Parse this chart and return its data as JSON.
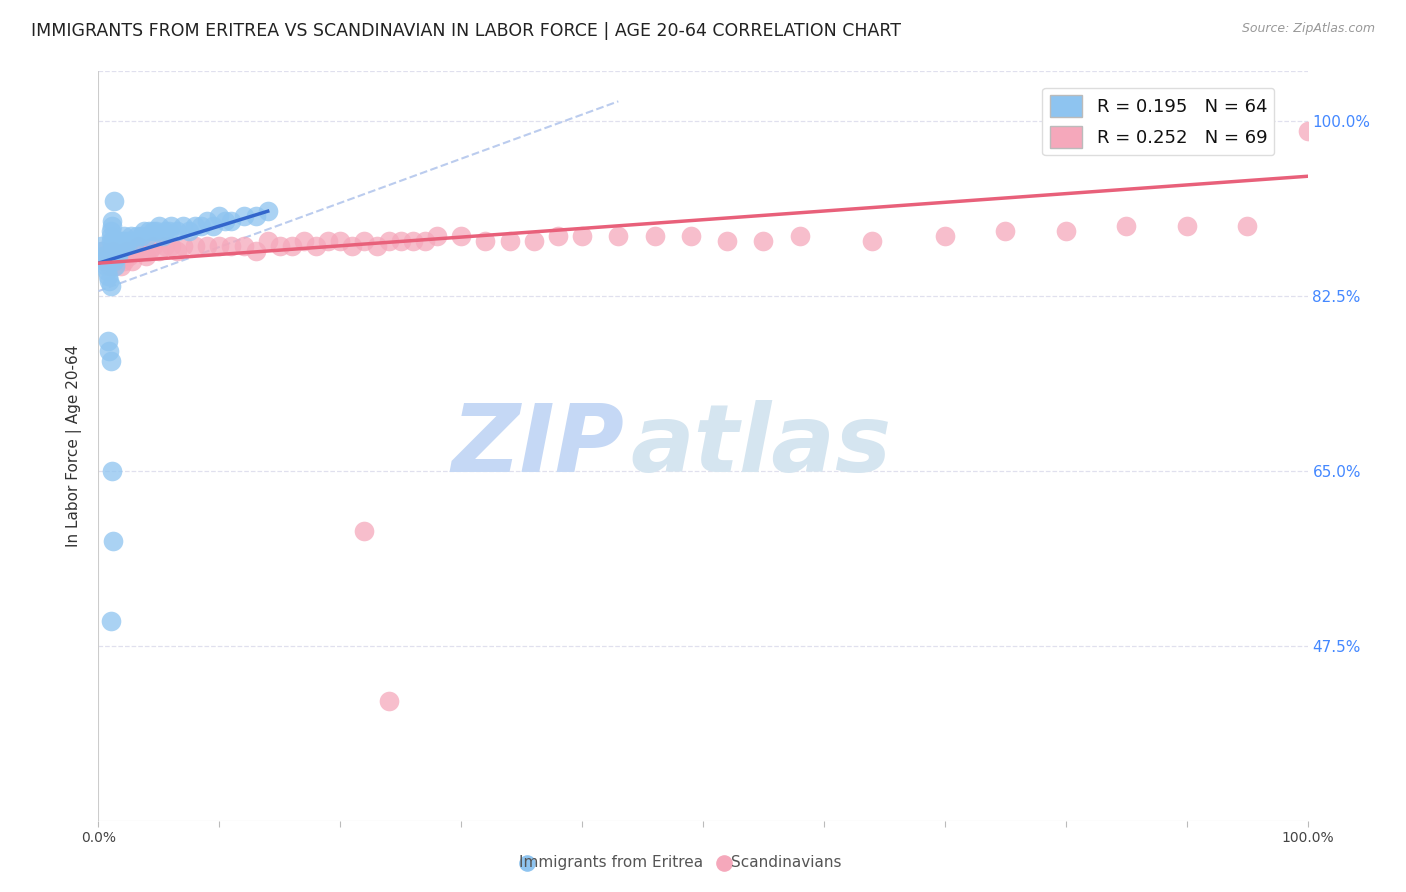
{
  "title": "IMMIGRANTS FROM ERITREA VS SCANDINAVIAN IN LABOR FORCE | AGE 20-64 CORRELATION CHART",
  "source": "Source: ZipAtlas.com",
  "ylabel": "In Labor Force | Age 20-64",
  "xlim": [
    0.0,
    1.0
  ],
  "ylim": [
    0.3,
    1.05
  ],
  "yticks": [
    0.475,
    0.65,
    0.825,
    1.0
  ],
  "ytick_labels": [
    "47.5%",
    "65.0%",
    "82.5%",
    "100.0%"
  ],
  "xticks": [
    0.0,
    0.1,
    0.2,
    0.3,
    0.4,
    0.5,
    0.6,
    0.7,
    0.8,
    0.9,
    1.0
  ],
  "blue_R": 0.195,
  "blue_N": 64,
  "pink_R": 0.252,
  "pink_N": 69,
  "blue_color": "#8EC4F0",
  "pink_color": "#F5A8BB",
  "blue_line_color": "#3366CC",
  "pink_line_color": "#E8607A",
  "dashed_line_color": "#BBCCEE",
  "background_color": "#FFFFFF",
  "zip_watermark_color": "#C5D8F5",
  "atlas_watermark_color": "#D5E5F0",
  "grid_color": "#E0E0EE",
  "title_fontsize": 12.5,
  "label_fontsize": 11,
  "tick_fontsize": 10,
  "legend_fontsize": 13,
  "blue_x": [
    0.002,
    0.003,
    0.004,
    0.005,
    0.006,
    0.007,
    0.008,
    0.009,
    0.01,
    0.01,
    0.01,
    0.01,
    0.011,
    0.011,
    0.012,
    0.012,
    0.013,
    0.013,
    0.014,
    0.015,
    0.016,
    0.017,
    0.018,
    0.019,
    0.02,
    0.02,
    0.021,
    0.022,
    0.023,
    0.025,
    0.027,
    0.03,
    0.032,
    0.035,
    0.038,
    0.04,
    0.042,
    0.045,
    0.048,
    0.05,
    0.053,
    0.055,
    0.058,
    0.06,
    0.065,
    0.07,
    0.075,
    0.08,
    0.085,
    0.09,
    0.095,
    0.1,
    0.105,
    0.11,
    0.12,
    0.13,
    0.14,
    0.008,
    0.009,
    0.01,
    0.011,
    0.012,
    0.01,
    0.013
  ],
  "blue_y": [
    0.875,
    0.87,
    0.865,
    0.86,
    0.855,
    0.85,
    0.845,
    0.84,
    0.835,
    0.88,
    0.885,
    0.89,
    0.895,
    0.9,
    0.87,
    0.875,
    0.88,
    0.86,
    0.855,
    0.87,
    0.865,
    0.87,
    0.875,
    0.88,
    0.875,
    0.88,
    0.885,
    0.875,
    0.88,
    0.88,
    0.885,
    0.88,
    0.885,
    0.885,
    0.89,
    0.885,
    0.89,
    0.89,
    0.89,
    0.895,
    0.885,
    0.89,
    0.89,
    0.895,
    0.89,
    0.895,
    0.89,
    0.895,
    0.895,
    0.9,
    0.895,
    0.905,
    0.9,
    0.9,
    0.905,
    0.905,
    0.91,
    0.78,
    0.77,
    0.76,
    0.65,
    0.58,
    0.5,
    0.92
  ],
  "pink_x": [
    0.003,
    0.005,
    0.007,
    0.009,
    0.01,
    0.011,
    0.012,
    0.013,
    0.015,
    0.017,
    0.019,
    0.021,
    0.023,
    0.025,
    0.028,
    0.03,
    0.033,
    0.036,
    0.039,
    0.042,
    0.045,
    0.05,
    0.055,
    0.06,
    0.065,
    0.07,
    0.08,
    0.09,
    0.1,
    0.11,
    0.12,
    0.13,
    0.14,
    0.15,
    0.16,
    0.17,
    0.18,
    0.19,
    0.2,
    0.21,
    0.22,
    0.23,
    0.24,
    0.25,
    0.26,
    0.27,
    0.28,
    0.3,
    0.32,
    0.34,
    0.36,
    0.38,
    0.4,
    0.43,
    0.46,
    0.49,
    0.52,
    0.55,
    0.58,
    0.64,
    0.7,
    0.75,
    0.8,
    0.85,
    0.9,
    0.95,
    1.0,
    0.22,
    0.24
  ],
  "pink_y": [
    0.87,
    0.865,
    0.86,
    0.855,
    0.86,
    0.865,
    0.87,
    0.855,
    0.86,
    0.865,
    0.855,
    0.86,
    0.87,
    0.865,
    0.86,
    0.87,
    0.875,
    0.87,
    0.865,
    0.87,
    0.875,
    0.87,
    0.875,
    0.875,
    0.87,
    0.875,
    0.875,
    0.875,
    0.875,
    0.875,
    0.875,
    0.87,
    0.88,
    0.875,
    0.875,
    0.88,
    0.875,
    0.88,
    0.88,
    0.875,
    0.88,
    0.875,
    0.88,
    0.88,
    0.88,
    0.88,
    0.885,
    0.885,
    0.88,
    0.88,
    0.88,
    0.885,
    0.885,
    0.885,
    0.885,
    0.885,
    0.88,
    0.88,
    0.885,
    0.88,
    0.885,
    0.89,
    0.89,
    0.895,
    0.895,
    0.895,
    0.99,
    0.59,
    0.42
  ],
  "blue_line_x": [
    0.0,
    0.14
  ],
  "blue_line_y": [
    0.858,
    0.91
  ],
  "pink_line_x": [
    0.0,
    1.0
  ],
  "pink_line_y": [
    0.858,
    0.945
  ],
  "dashed_line_x": [
    0.0,
    0.43
  ],
  "dashed_line_y": [
    0.83,
    1.02
  ]
}
